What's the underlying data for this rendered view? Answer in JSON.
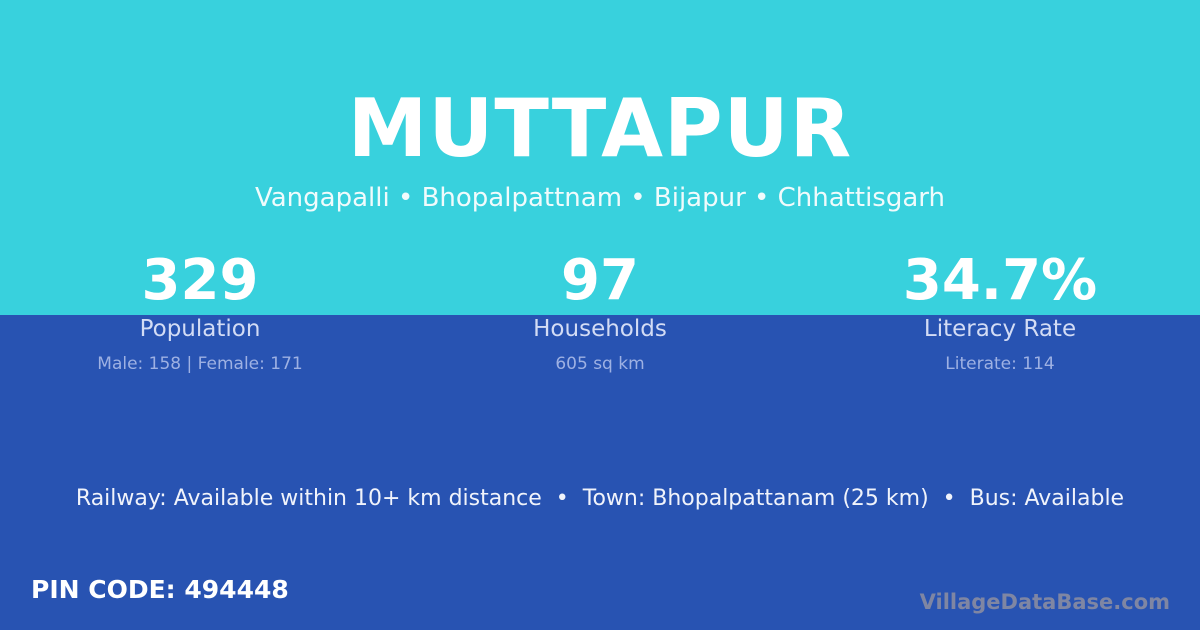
{
  "title": "MUTTAPUR",
  "location": "Vangapalli • Bhopalpattnam • Bijapur • Chhattisgarh",
  "stats": [
    {
      "value": "329",
      "label": "Population",
      "detail": "Male: 158 | Female: 171"
    },
    {
      "value": "97",
      "label": "Households",
      "detail": "605 sq km"
    },
    {
      "value": "34.7%",
      "label": "Literacy Rate",
      "detail": "Literate: 114"
    }
  ],
  "amenities": "Railway: Available within 10+ km distance  •  Town: Bhopalpattanam (25 km)  •  Bus: Available",
  "pin": "PIN CODE: 494448",
  "watermark": "VillageDataBase.com",
  "colors": {
    "top": "#38d1dd",
    "bottom": "#2853b2"
  }
}
